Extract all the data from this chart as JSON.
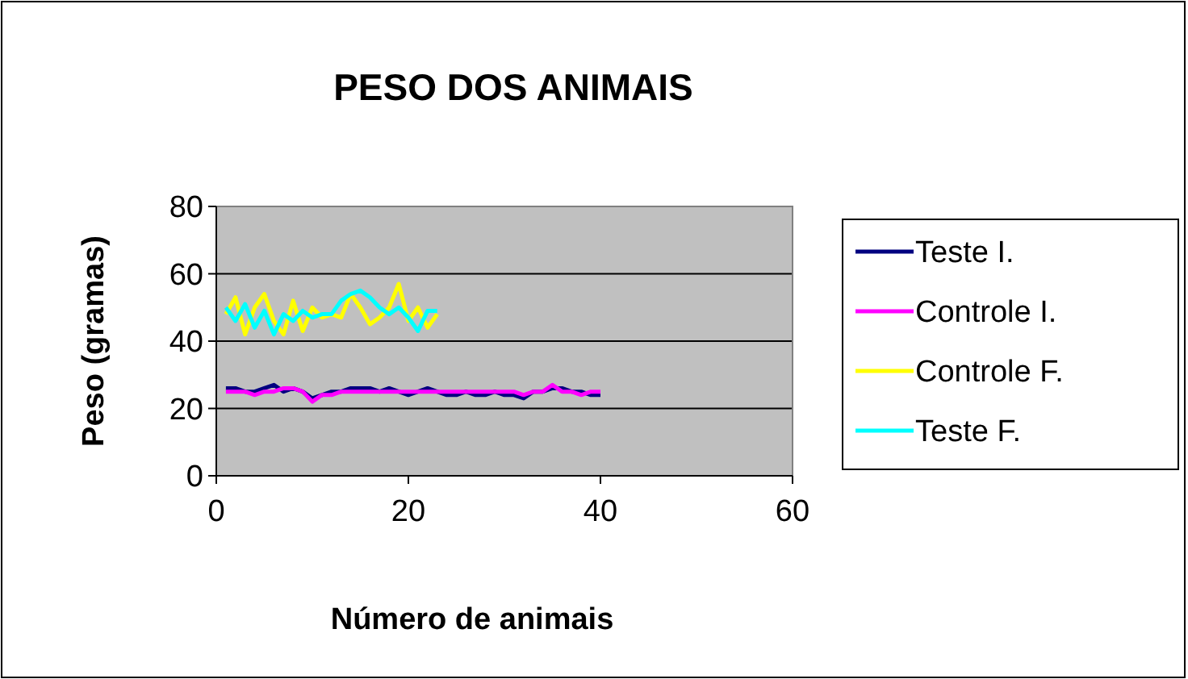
{
  "chart_data": {
    "type": "line",
    "title": "PESO DOS ANIMAIS",
    "xlabel": "Número de animais",
    "ylabel": "Peso (gramas)",
    "xlim": [
      0,
      60
    ],
    "xticks": [
      0,
      20,
      40,
      60
    ],
    "ylim": [
      0,
      80
    ],
    "yticks": [
      0,
      20,
      40,
      60,
      80
    ],
    "grid": "y",
    "legend": "right",
    "marker": "none",
    "series": [
      {
        "name": "Teste I.",
        "color": "#000080",
        "x": [
          1,
          2,
          3,
          4,
          5,
          6,
          7,
          8,
          9,
          10,
          11,
          12,
          13,
          14,
          15,
          16,
          17,
          18,
          19,
          20,
          21,
          22,
          23,
          24,
          25,
          26,
          27,
          28,
          29,
          30,
          31,
          32,
          33,
          34,
          35,
          36,
          37,
          38,
          39,
          40
        ],
        "values": [
          26,
          26,
          25,
          25,
          26,
          27,
          25,
          26,
          25,
          23,
          24,
          25,
          25,
          26,
          26,
          26,
          25,
          26,
          25,
          24,
          25,
          26,
          25,
          24,
          24,
          25,
          24,
          24,
          25,
          24,
          24,
          23,
          25,
          25,
          26,
          26,
          25,
          25,
          24,
          24
        ]
      },
      {
        "name": "Controle I.",
        "color": "#ff00ff",
        "x": [
          1,
          2,
          3,
          4,
          5,
          6,
          7,
          8,
          9,
          10,
          11,
          12,
          13,
          14,
          15,
          16,
          17,
          18,
          19,
          20,
          21,
          22,
          23,
          24,
          25,
          26,
          27,
          28,
          29,
          30,
          31,
          32,
          33,
          34,
          35,
          36,
          37,
          38,
          39,
          40
        ],
        "values": [
          25,
          25,
          25,
          24,
          25,
          25,
          26,
          26,
          25,
          22,
          24,
          24,
          25,
          25,
          25,
          25,
          25,
          25,
          25,
          25,
          25,
          25,
          25,
          25,
          25,
          25,
          25,
          25,
          25,
          25,
          25,
          24,
          25,
          25,
          27,
          25,
          25,
          24,
          25,
          25
        ]
      },
      {
        "name": "Controle F.",
        "color": "#ffff00",
        "x": [
          1,
          2,
          3,
          4,
          5,
          6,
          7,
          8,
          9,
          10,
          11,
          12,
          13,
          14,
          15,
          16,
          17,
          18,
          19,
          20,
          21,
          22,
          23
        ],
        "values": [
          48,
          53,
          42,
          50,
          54,
          46,
          42,
          52,
          43,
          50,
          47,
          48,
          47,
          54,
          50,
          45,
          47,
          50,
          57,
          46,
          50,
          44,
          48
        ]
      },
      {
        "name": "Teste F.",
        "color": "#00ffff",
        "x": [
          1,
          2,
          3,
          4,
          5,
          6,
          7,
          8,
          9,
          10,
          11,
          12,
          13,
          14,
          15,
          16,
          17,
          18,
          19,
          20,
          21,
          22,
          23
        ],
        "values": [
          50,
          46,
          51,
          44,
          49,
          42,
          48,
          46,
          49,
          47,
          48,
          48,
          52,
          54,
          55,
          53,
          50,
          48,
          50,
          47,
          43,
          49,
          49
        ]
      }
    ]
  }
}
